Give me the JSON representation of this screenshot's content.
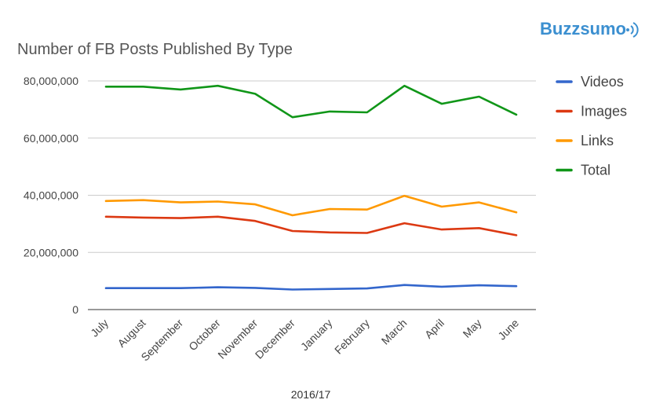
{
  "brand": {
    "name": "Buzzsumo",
    "icon": "wifi-signal-icon",
    "color": "#3b8fd0"
  },
  "chart_data": {
    "type": "line",
    "title": "Number of FB Posts Published By Type",
    "xlabel": "2016/17",
    "ylabel": "",
    "ylim": [
      0,
      80000000
    ],
    "yticks": [
      0,
      20000000,
      40000000,
      60000000,
      80000000
    ],
    "ytick_labels": [
      "0",
      "20,000,000",
      "40,000,000",
      "60,000,000",
      "80,000,000"
    ],
    "grid": true,
    "legend_position": "right",
    "categories": [
      "July",
      "August",
      "September",
      "October",
      "November",
      "December",
      "January",
      "February",
      "March",
      "April",
      "May",
      "June"
    ],
    "series": [
      {
        "name": "Videos",
        "color": "#3366cc",
        "values": [
          7500000,
          7500000,
          7500000,
          7800000,
          7600000,
          7000000,
          7200000,
          7400000,
          8600000,
          8000000,
          8500000,
          8200000
        ]
      },
      {
        "name": "Images",
        "color": "#dc3912",
        "values": [
          32500000,
          32200000,
          32000000,
          32500000,
          31000000,
          27500000,
          27000000,
          26800000,
          30200000,
          28000000,
          28500000,
          26000000
        ]
      },
      {
        "name": "Links",
        "color": "#ff9900",
        "values": [
          38000000,
          38300000,
          37500000,
          37800000,
          36800000,
          33000000,
          35200000,
          35000000,
          39800000,
          36000000,
          37500000,
          34000000
        ]
      },
      {
        "name": "Total",
        "color": "#109618",
        "values": [
          78000000,
          78000000,
          77000000,
          78300000,
          75500000,
          67300000,
          69300000,
          69000000,
          78300000,
          72000000,
          74500000,
          68200000
        ]
      }
    ]
  }
}
